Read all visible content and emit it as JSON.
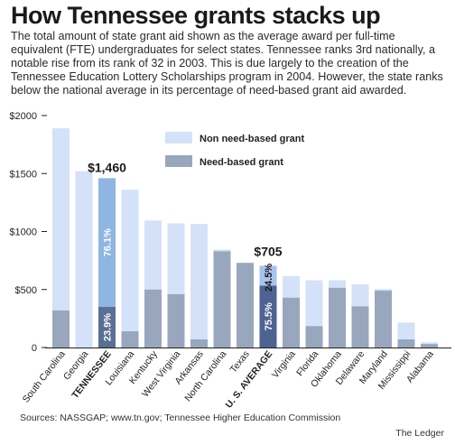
{
  "title": "How Tennessee grants stacks up",
  "subtitle": "The total amount of state grant aid shown as the average award per full-time equivalent (FTE) undergraduates for select states. Tennessee ranks 3rd nationally, a notable rise from its rank of 32 in 2003. This is due largely to the creation of the Tennessee Education Lottery Scholarships program in 2004. However, the state ranks below the national average in its percentage of need-based grant aid awarded.",
  "source": "Sources: NASSGAP; www.tn.gov; Tennessee Higher Education Commission",
  "credit": "The Ledger",
  "colors": {
    "non_need": "#d3e2f8",
    "need": "#98a7bd",
    "tn_non_need": "#8fb6e2",
    "tn_need": "#5a6f94",
    "us_non_need": "#a7c3ec",
    "us_need": "#4e6391"
  },
  "chart_data": {
    "type": "bar",
    "stacked": true,
    "categories": [
      "South Carolina",
      "Georgia",
      "TENNESSEE",
      "Louisiana",
      "Kentucky",
      "West Virginia",
      "Arkansas",
      "North Carolina",
      "Texas",
      "U. S. AVERAGE",
      "Virginia",
      "Florida",
      "Oklahoma",
      "Delaware",
      "Maryland",
      "Mississippi",
      "Alabama"
    ],
    "highlight": [
      "TENNESSEE",
      "U. S. AVERAGE"
    ],
    "series": [
      {
        "name": "Need-based grant",
        "values": [
          320,
          0,
          350,
          140,
          500,
          460,
          70,
          830,
          730,
          533,
          430,
          185,
          515,
          355,
          490,
          70,
          30
        ]
      },
      {
        "name": "Non need-based grant",
        "values": [
          1570,
          1520,
          1110,
          1220,
          595,
          610,
          995,
          15,
          0,
          172,
          185,
          395,
          65,
          190,
          15,
          145,
          15
        ]
      }
    ],
    "yticks": [
      "0",
      "$500",
      "$1000",
      "$1500",
      "$2000"
    ],
    "ylim": [
      0,
      2000
    ],
    "grid": false,
    "legend": "top-right",
    "annotations": {
      "tn_total": "$1,460",
      "us_total": "$705",
      "tn_non_need_pct": "76.1%",
      "tn_need_pct": "23.9%",
      "us_non_need_pct": "24.5%",
      "us_need_pct": "75.5%"
    }
  }
}
